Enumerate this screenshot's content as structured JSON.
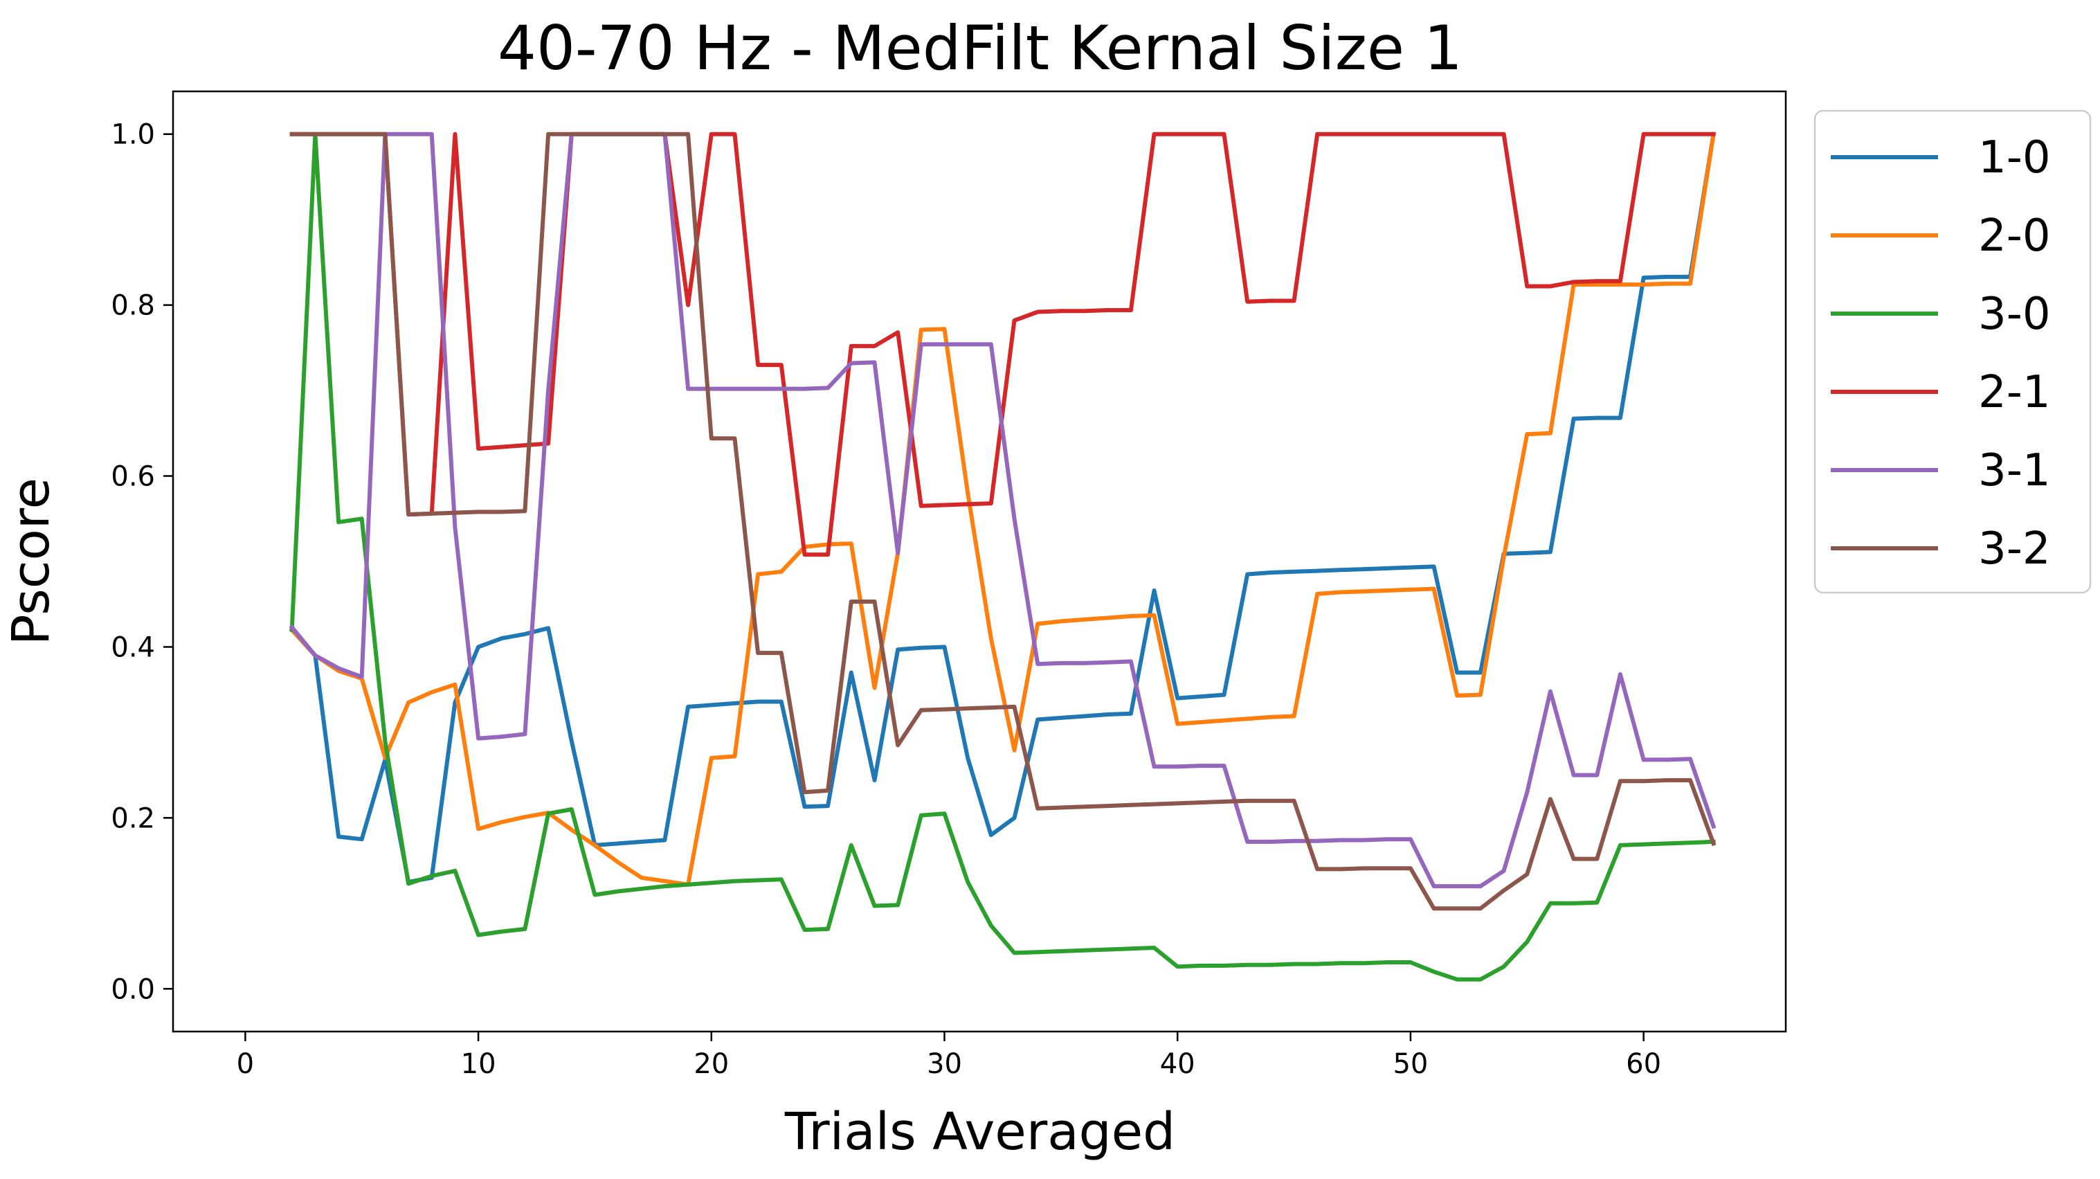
{
  "chart_data": {
    "type": "line",
    "title": "40-70 Hz - MedFilt Kernal Size 1",
    "xlabel": "Trials Averaged",
    "ylabel": "Pscore",
    "xlim": [
      -3.1,
      66.1
    ],
    "ylim": [
      -0.05,
      1.05
    ],
    "xticks": [
      0,
      10,
      20,
      30,
      40,
      50,
      60
    ],
    "xtick_labels": [
      "0",
      "10",
      "20",
      "30",
      "40",
      "50",
      "60"
    ],
    "yticks": [
      0.0,
      0.2,
      0.4,
      0.6,
      0.8,
      1.0
    ],
    "ytick_labels": [
      "0.0",
      "0.2",
      "0.4",
      "0.6",
      "0.8",
      "1.0"
    ],
    "grid": false,
    "legend": "outside-upper-right",
    "x": [
      2,
      3,
      4,
      5,
      6,
      7,
      8,
      9,
      10,
      11,
      12,
      13,
      14,
      15,
      16,
      17,
      18,
      19,
      20,
      21,
      22,
      23,
      24,
      25,
      26,
      27,
      28,
      29,
      30,
      31,
      32,
      33,
      34,
      35,
      36,
      37,
      38,
      39,
      40,
      41,
      42,
      43,
      44,
      45,
      46,
      47,
      48,
      49,
      50,
      51,
      52,
      53,
      54,
      55,
      56,
      57,
      58,
      59,
      60,
      61,
      62,
      63
    ],
    "series": [
      {
        "name": "1-0",
        "color": "#1f77b4",
        "values": [
          0.42,
          0.39,
          0.178,
          0.175,
          0.268,
          0.125,
          0.13,
          0.335,
          0.4,
          0.41,
          0.415,
          0.422,
          0.29,
          0.168,
          0.17,
          0.172,
          0.174,
          0.33,
          0.332,
          0.334,
          0.336,
          0.336,
          0.213,
          0.214,
          0.37,
          0.244,
          0.397,
          0.399,
          0.4,
          0.27,
          0.18,
          0.2,
          0.315,
          0.317,
          0.319,
          0.321,
          0.322,
          0.466,
          0.34,
          0.342,
          0.344,
          0.485,
          0.487,
          0.488,
          0.489,
          0.49,
          0.491,
          0.492,
          0.493,
          0.494,
          0.37,
          0.37,
          0.509,
          0.51,
          0.511,
          0.667,
          0.668,
          0.668,
          0.832,
          0.833,
          0.833,
          1.0
        ]
      },
      {
        "name": "2-0",
        "color": "#ff7f0e",
        "values": [
          0.42,
          0.39,
          0.372,
          0.363,
          0.27,
          0.335,
          0.347,
          0.356,
          0.187,
          0.195,
          0.201,
          0.206,
          0.186,
          0.168,
          0.148,
          0.13,
          0.126,
          0.122,
          0.27,
          0.272,
          0.485,
          0.488,
          0.517,
          0.52,
          0.521,
          0.352,
          0.51,
          0.771,
          0.772,
          0.58,
          0.41,
          0.279,
          0.427,
          0.43,
          0.432,
          0.434,
          0.436,
          0.437,
          0.31,
          0.312,
          0.314,
          0.316,
          0.318,
          0.319,
          0.462,
          0.464,
          0.465,
          0.466,
          0.467,
          0.468,
          0.343,
          0.344,
          0.505,
          0.649,
          0.65,
          0.824,
          0.824,
          0.824,
          0.824,
          0.825,
          0.825,
          1.0
        ]
      },
      {
        "name": "3-0",
        "color": "#2ca02c",
        "values": [
          0.42,
          1.0,
          0.546,
          0.55,
          0.29,
          0.123,
          0.132,
          0.138,
          0.063,
          0.067,
          0.07,
          0.205,
          0.21,
          0.11,
          0.114,
          0.117,
          0.12,
          0.122,
          0.124,
          0.126,
          0.127,
          0.128,
          0.069,
          0.07,
          0.168,
          0.097,
          0.098,
          0.203,
          0.205,
          0.125,
          0.074,
          0.042,
          0.043,
          0.044,
          0.045,
          0.046,
          0.047,
          0.048,
          0.026,
          0.027,
          0.027,
          0.028,
          0.028,
          0.029,
          0.029,
          0.03,
          0.03,
          0.031,
          0.031,
          0.02,
          0.011,
          0.011,
          0.026,
          0.055,
          0.1,
          0.1,
          0.101,
          0.168,
          0.169,
          0.17,
          0.171,
          0.172
        ]
      },
      {
        "name": "2-1",
        "color": "#d62728",
        "values": [
          1.0,
          1.0,
          1.0,
          1.0,
          1.0,
          0.555,
          0.556,
          1.0,
          0.632,
          0.634,
          0.636,
          0.638,
          1.0,
          1.0,
          1.0,
          1.0,
          1.0,
          0.8,
          1.0,
          1.0,
          0.73,
          0.73,
          0.508,
          0.508,
          0.752,
          0.752,
          0.768,
          0.565,
          0.566,
          0.567,
          0.568,
          0.782,
          0.792,
          0.793,
          0.793,
          0.794,
          0.794,
          1.0,
          1.0,
          1.0,
          1.0,
          0.804,
          0.805,
          0.805,
          1.0,
          1.0,
          1.0,
          1.0,
          1.0,
          1.0,
          1.0,
          1.0,
          1.0,
          0.822,
          0.822,
          0.827,
          0.828,
          0.828,
          1.0,
          1.0,
          1.0,
          1.0
        ]
      },
      {
        "name": "3-1",
        "color": "#9467bd",
        "values": [
          0.423,
          0.39,
          0.375,
          0.365,
          1.0,
          1.0,
          1.0,
          0.54,
          0.293,
          0.295,
          0.298,
          0.7,
          1.0,
          1.0,
          1.0,
          1.0,
          1.0,
          0.702,
          0.702,
          0.702,
          0.702,
          0.702,
          0.702,
          0.703,
          0.732,
          0.733,
          0.51,
          0.754,
          0.754,
          0.754,
          0.754,
          0.55,
          0.38,
          0.381,
          0.381,
          0.382,
          0.383,
          0.26,
          0.26,
          0.261,
          0.261,
          0.172,
          0.172,
          0.173,
          0.173,
          0.174,
          0.174,
          0.175,
          0.175,
          0.12,
          0.12,
          0.12,
          0.138,
          0.23,
          0.348,
          0.25,
          0.25,
          0.368,
          0.268,
          0.268,
          0.269,
          0.19
        ]
      },
      {
        "name": "3-2",
        "color": "#8c564b",
        "values": [
          1.0,
          1.0,
          1.0,
          1.0,
          1.0,
          0.555,
          0.556,
          0.557,
          0.558,
          0.558,
          0.559,
          1.0,
          1.0,
          1.0,
          1.0,
          1.0,
          1.0,
          1.0,
          0.644,
          0.644,
          0.393,
          0.393,
          0.23,
          0.232,
          0.453,
          0.453,
          0.285,
          0.326,
          0.327,
          0.328,
          0.329,
          0.33,
          0.211,
          0.212,
          0.213,
          0.214,
          0.215,
          0.216,
          0.217,
          0.218,
          0.219,
          0.22,
          0.22,
          0.22,
          0.14,
          0.14,
          0.141,
          0.141,
          0.141,
          0.094,
          0.094,
          0.094,
          0.115,
          0.134,
          0.222,
          0.152,
          0.152,
          0.243,
          0.243,
          0.244,
          0.244,
          0.17
        ]
      }
    ]
  }
}
